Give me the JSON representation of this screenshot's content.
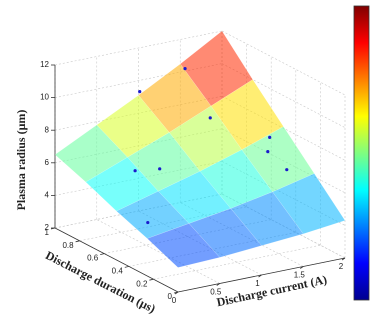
{
  "chart_data": {
    "type": "surface",
    "x_label": "Discharge current (A)",
    "y_label": "Discharge duration (μs)",
    "z_label": "Plasma radius (μm)",
    "xlim": [
      0,
      2
    ],
    "xticks": [
      0,
      0.5,
      1,
      1.5,
      2
    ],
    "ylim": [
      0,
      1
    ],
    "yticks": [
      0,
      0.2,
      0.4,
      0.6,
      0.8,
      1
    ],
    "zlim": [
      2,
      12
    ],
    "zticks": [
      2,
      4,
      6,
      8,
      10,
      12
    ],
    "grid": true,
    "colormap": "jet",
    "clim": [
      2,
      12
    ],
    "surface": {
      "x": [
        0,
        0.5,
        1,
        1.5,
        2
      ],
      "y": [
        0,
        0.25,
        0.5,
        0.75,
        1
      ],
      "z": [
        [
          3.5,
          3.6,
          3.8,
          4.0,
          4.3
        ],
        [
          4.3,
          4.7,
          5.1,
          5.6,
          6.2
        ],
        [
          5.0,
          5.7,
          6.4,
          7.2,
          8.1
        ],
        [
          5.8,
          6.8,
          7.8,
          8.9,
          10.0
        ],
        [
          6.5,
          7.8,
          9.1,
          10.5,
          12.0
        ]
      ]
    },
    "points": {
      "color": "#1a1acc",
      "x": [
        0.72,
        1.41,
        1.27,
        1.54,
        1.37,
        1.45,
        0.37,
        0.37,
        0.08
      ],
      "y": [
        0.8,
        0.9,
        0.6,
        0.3,
        0.2,
        0.1,
        0.6,
        0.4,
        0.3
      ],
      "z": [
        10.4,
        10.7,
        9.0,
        8.7,
        8.4,
        7.6,
        6.7,
        7.6,
        5.0
      ]
    }
  }
}
